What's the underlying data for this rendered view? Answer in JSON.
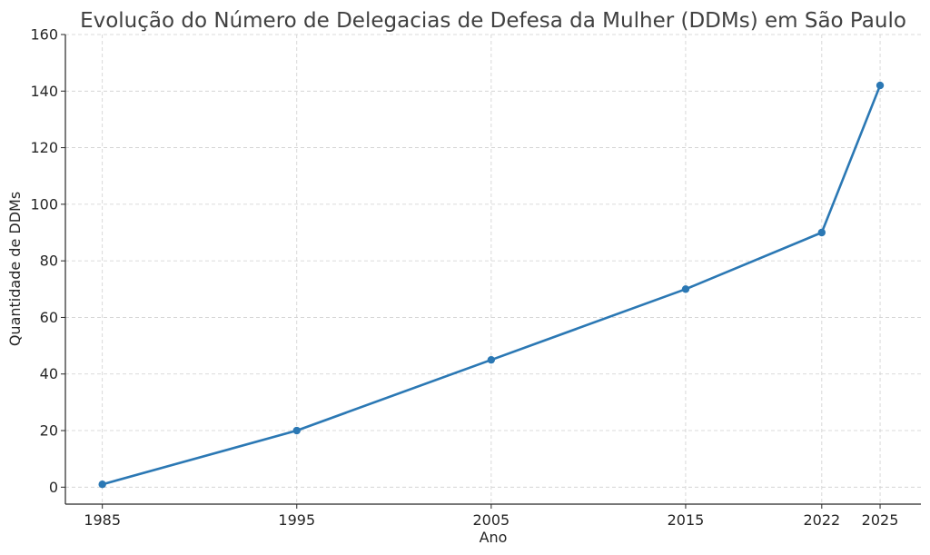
{
  "chart_data": {
    "type": "line",
    "title": "Evolução do Número de Delegacias de Defesa da Mulher (DDMs) em São Paulo",
    "xlabel": "Ano",
    "ylabel": "Quantidade de DDMs",
    "x": [
      1985,
      1995,
      2005,
      2015,
      2022,
      2025
    ],
    "series": [
      {
        "values": [
          1,
          20,
          45,
          70,
          90,
          142
        ]
      }
    ],
    "xticks": [
      "1985",
      "1995",
      "2005",
      "2015",
      "2022",
      "2025"
    ],
    "yticks": [
      "0",
      "20",
      "40",
      "60",
      "80",
      "100",
      "120",
      "140",
      "160"
    ],
    "xlim": [
      1983.1,
      2027.1
    ],
    "ylim": [
      -6,
      160
    ],
    "grid": true,
    "line_color": "#2b78b4"
  }
}
